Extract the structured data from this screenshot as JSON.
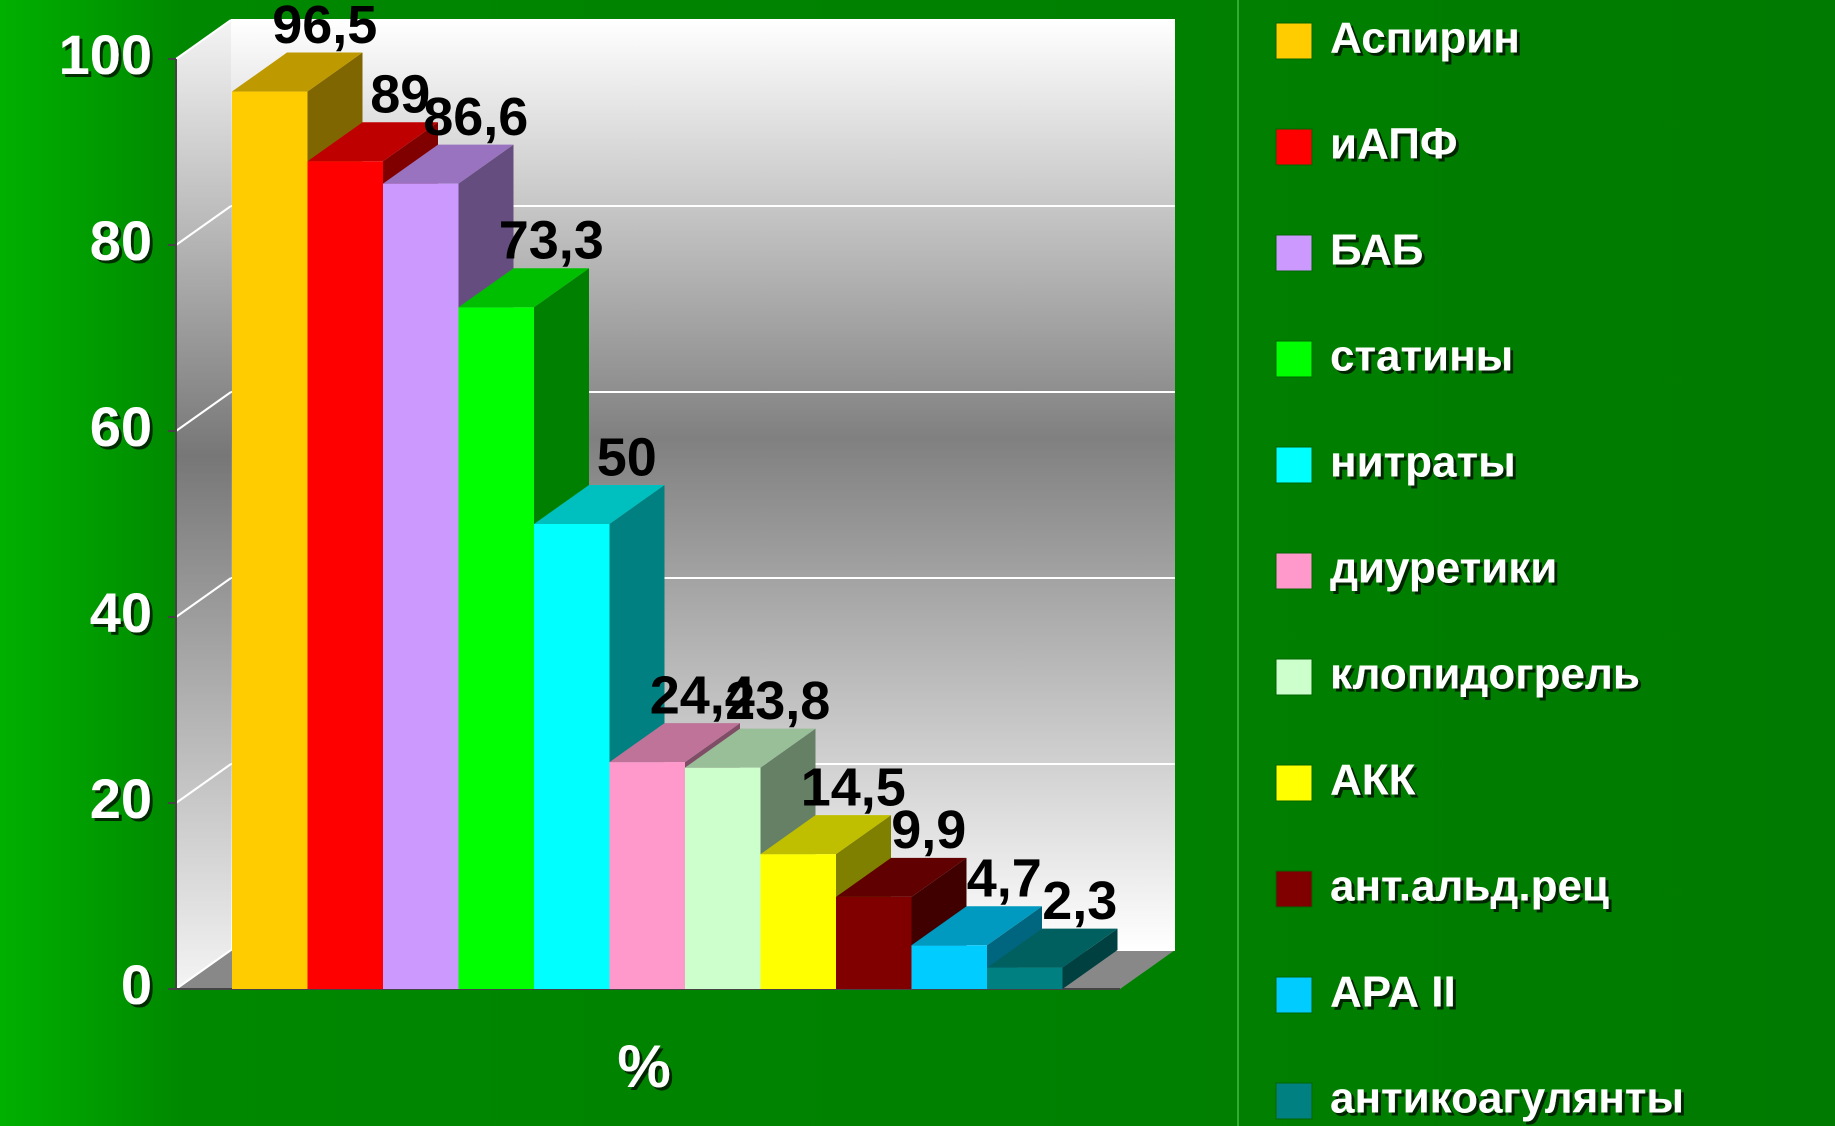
{
  "chart_data": {
    "type": "bar",
    "x_label": "%",
    "ylim": [
      0,
      100
    ],
    "yticks": [
      0,
      20,
      40,
      60,
      80,
      100
    ],
    "grid": true,
    "legend": "right",
    "series": [
      {
        "name": "Аспирин",
        "color": "#ffcc00",
        "values": [
          96.5
        ],
        "value_labels": [
          "96,5"
        ]
      },
      {
        "name": "иАПФ",
        "color": "#ff0000",
        "values": [
          89
        ]
      },
      {
        "name": "БАБ",
        "color": "#cc99ff",
        "values": [
          86.6
        ],
        "value_labels": [
          "86,6"
        ]
      },
      {
        "name": "статины",
        "color": "#00ff00",
        "values": [
          73.3
        ],
        "value_labels": [
          "73,3"
        ]
      },
      {
        "name": "нитраты",
        "color": "#00ffff",
        "values": [
          50
        ]
      },
      {
        "name": "диуретики",
        "color": "#ff99cc",
        "values": [
          24.4
        ],
        "value_labels": [
          "24,4"
        ]
      },
      {
        "name": "клопидогрель",
        "color": "#ccffcc",
        "values": [
          23.8
        ],
        "value_labels": [
          "23,8"
        ]
      },
      {
        "name": "АКК",
        "color": "#ffff00",
        "values": [
          14.5
        ],
        "value_labels": [
          "14,5"
        ]
      },
      {
        "name": "ант.альд.рец",
        "color": "#800000",
        "values": [
          9.9
        ],
        "value_labels": [
          "9,9"
        ]
      },
      {
        "name": "АРА II",
        "color": "#00ccff",
        "values": [
          4.7
        ],
        "value_labels": [
          "4,7"
        ]
      },
      {
        "name": "антикоагулянты",
        "color": "#008080",
        "values": [
          2.3
        ],
        "value_labels": [
          "2,3"
        ]
      }
    ]
  }
}
